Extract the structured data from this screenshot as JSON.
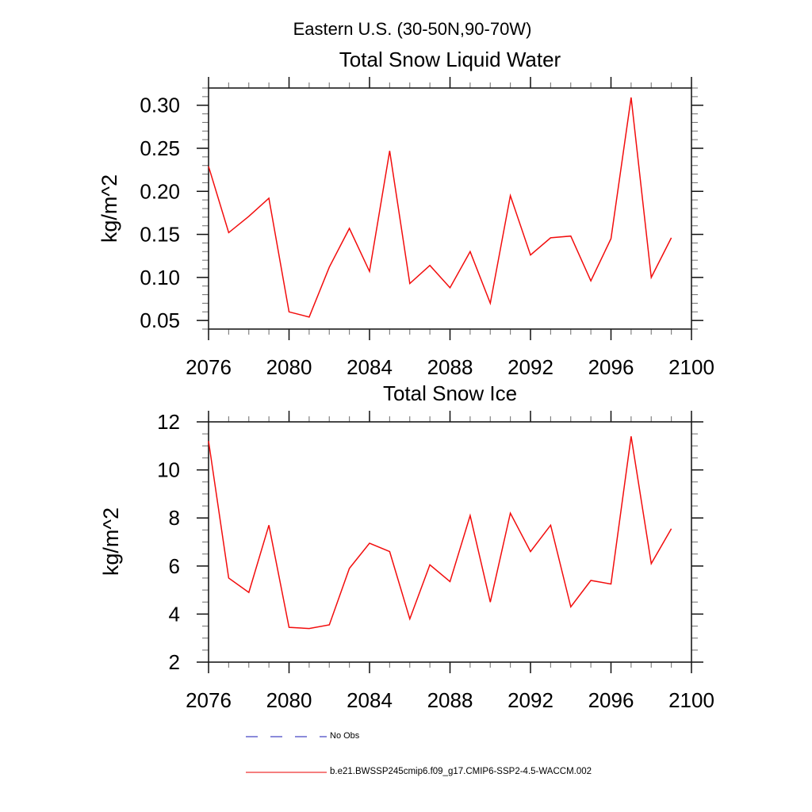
{
  "page": {
    "main_title": "Eastern U.S. (30-50N,90-70W)"
  },
  "legend": {
    "items": [
      {
        "label": "No Obs",
        "color": "#6565cd",
        "style": "dashed"
      },
      {
        "label": "b.e21.BWSSP245cmip6.f09_g17.CMIP6-SSP2-4.5-WACCM.002",
        "color": "#f25555",
        "style": "solid"
      }
    ]
  },
  "chart_data": [
    {
      "type": "line",
      "title": "Total Snow Liquid Water",
      "xlabel": "",
      "ylabel": "kg/m^2",
      "xlim": [
        2076,
        2100
      ],
      "ylim": [
        0.04,
        0.32
      ],
      "grid": false,
      "legend_position": "bottom",
      "x_tick_values": [
        2076,
        2080,
        2084,
        2088,
        2092,
        2096,
        2100
      ],
      "x_tick_labels": [
        "2076",
        "2080",
        "2084",
        "2088",
        "2092",
        "2096",
        "2100"
      ],
      "x_minor_step": 1,
      "y_tick_values": [
        0.05,
        0.1,
        0.15,
        0.2,
        0.25,
        0.3
      ],
      "y_tick_labels": [
        "0.05",
        "0.10",
        "0.15",
        "0.20",
        "0.25",
        "0.30"
      ],
      "y_minor_step": 0.01,
      "x": [
        2076,
        2077,
        2078,
        2079,
        2080,
        2081,
        2082,
        2083,
        2084,
        2085,
        2086,
        2087,
        2088,
        2089,
        2090,
        2091,
        2092,
        2093,
        2094,
        2095,
        2096,
        2097,
        2098,
        2099
      ],
      "series": [
        {
          "name": "b.e21.BWSSP245cmip6.f09_g17.CMIP6-SSP2-4.5-WACCM.002",
          "color": "#f20d0d",
          "values": [
            0.229,
            0.152,
            0.171,
            0.192,
            0.06,
            0.054,
            0.112,
            0.157,
            0.107,
            0.247,
            0.093,
            0.114,
            0.088,
            0.13,
            0.07,
            0.195,
            0.126,
            0.146,
            0.148,
            0.096,
            0.145,
            0.309,
            0.1,
            0.146
          ]
        }
      ]
    },
    {
      "type": "line",
      "title": "Total Snow Ice",
      "xlabel": "",
      "ylabel": "kg/m^2",
      "xlim": [
        2076,
        2100
      ],
      "ylim": [
        2,
        12
      ],
      "grid": false,
      "legend_position": "bottom",
      "x_tick_values": [
        2076,
        2080,
        2084,
        2088,
        2092,
        2096,
        2100
      ],
      "x_tick_labels": [
        "2076",
        "2080",
        "2084",
        "2088",
        "2092",
        "2096",
        "2100"
      ],
      "x_minor_step": 1,
      "y_tick_values": [
        2,
        4,
        6,
        8,
        10,
        12
      ],
      "y_tick_labels": [
        "2",
        "4",
        "6",
        "8",
        "10",
        "12"
      ],
      "y_minor_step": 0.5,
      "x": [
        2076,
        2077,
        2078,
        2079,
        2080,
        2081,
        2082,
        2083,
        2084,
        2085,
        2086,
        2087,
        2088,
        2089,
        2090,
        2091,
        2092,
        2093,
        2094,
        2095,
        2096,
        2097,
        2098,
        2099
      ],
      "series": [
        {
          "name": "b.e21.BWSSP245cmip6.f09_g17.CMIP6-SSP2-4.5-WACCM.002",
          "color": "#f20d0d",
          "values": [
            11.2,
            5.5,
            4.9,
            7.7,
            3.45,
            3.4,
            3.55,
            5.9,
            6.95,
            6.6,
            3.8,
            6.05,
            5.35,
            8.1,
            4.5,
            8.2,
            6.6,
            7.7,
            4.3,
            5.4,
            5.25,
            11.4,
            6.1,
            7.55
          ]
        }
      ]
    }
  ]
}
